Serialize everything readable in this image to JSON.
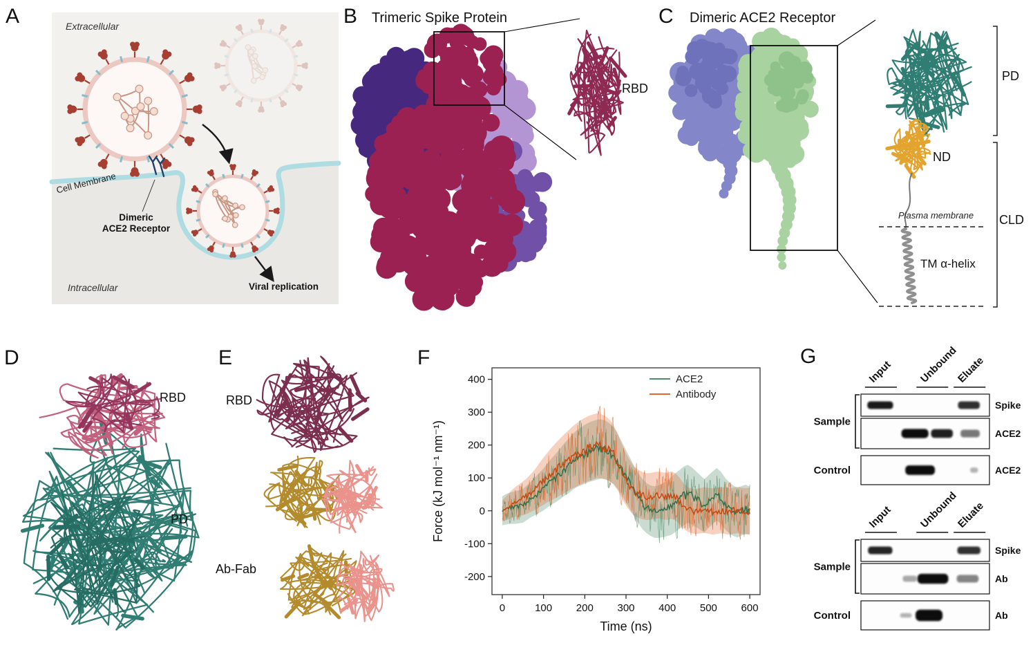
{
  "figure": {
    "panels": {
      "a": {
        "label": "A",
        "extracellular": "Extracellular",
        "intracellular": "Intracellular",
        "cell_membrane": "Cell Membrane",
        "receptor_label": "Dimeric\nACE2 Receptor",
        "viral_replication": "Viral replication"
      },
      "b": {
        "label": "B",
        "title": "Trimeric Spike Protein",
        "rbd_label": "RBD"
      },
      "c": {
        "label": "C",
        "title": "Dimeric ACE2 Receptor",
        "pd_label": "PD",
        "nd_label": "ND",
        "cld_label": "CLD",
        "plasma_membrane_label": "Plasma membrane",
        "tm_helix_label": "TM α-helix"
      },
      "d": {
        "label": "D",
        "rbd_label": "RBD",
        "pd_label": "PD"
      },
      "e": {
        "label": "E",
        "rbd_label": "RBD",
        "abfab_label": "Ab-Fab"
      },
      "f": {
        "label": "F"
      },
      "g": {
        "label": "G",
        "groups": [
          {
            "name": "ace2-pulldown",
            "lanes": [
              "Input",
              "Unbound",
              "Eluate"
            ],
            "sample_label": "Sample",
            "control_label": "Control",
            "rows": [
              {
                "group": "Sample",
                "target": "Spike",
                "bands": [
                  {
                    "pos": 0.15,
                    "w": 0.2,
                    "i": 0.95,
                    "h": 1
                  },
                  {
                    "pos": 0.84,
                    "w": 0.17,
                    "i": 0.85,
                    "h": 1
                  }
                ]
              },
              {
                "group": "Sample",
                "target": "ACE2",
                "bands": [
                  {
                    "pos": 0.42,
                    "w": 0.21,
                    "i": 1,
                    "h": 1.2
                  },
                  {
                    "pos": 0.63,
                    "w": 0.17,
                    "i": 0.92,
                    "h": 1.15
                  },
                  {
                    "pos": 0.85,
                    "w": 0.15,
                    "i": 0.55,
                    "h": 1
                  }
                ]
              },
              {
                "group": "Control",
                "target": "ACE2",
                "bands": [
                  {
                    "pos": 0.46,
                    "w": 0.23,
                    "i": 1,
                    "h": 1.25
                  },
                  {
                    "pos": 0.88,
                    "w": 0.06,
                    "i": 0.3,
                    "h": 0.7
                  }
                ]
              }
            ]
          },
          {
            "name": "antibody-pulldown",
            "lanes": [
              "Input",
              "Unbound",
              "Eluate"
            ],
            "sample_label": "Sample",
            "control_label": "Control",
            "rows": [
              {
                "group": "Sample",
                "target": "Spike",
                "bands": [
                  {
                    "pos": 0.15,
                    "w": 0.19,
                    "i": 0.9,
                    "h": 1
                  },
                  {
                    "pos": 0.84,
                    "w": 0.18,
                    "i": 0.85,
                    "h": 1
                  }
                ]
              },
              {
                "group": "Sample",
                "target": "Ab",
                "bands": [
                  {
                    "pos": 0.38,
                    "w": 0.11,
                    "i": 0.35,
                    "h": 0.8
                  },
                  {
                    "pos": 0.56,
                    "w": 0.24,
                    "i": 1,
                    "h": 1.3
                  },
                  {
                    "pos": 0.83,
                    "w": 0.17,
                    "i": 0.5,
                    "h": 1
                  }
                ]
              },
              {
                "group": "Control",
                "target": "Ab",
                "bands": [
                  {
                    "pos": 0.35,
                    "w": 0.09,
                    "i": 0.3,
                    "h": 0.6
                  },
                  {
                    "pos": 0.53,
                    "w": 0.21,
                    "i": 1,
                    "h": 1.5
                  }
                ]
              }
            ]
          }
        ]
      }
    },
    "colors": {
      "spike_crimson": "#9b2153",
      "spike_dark_purple": "#47287f",
      "spike_lavender": "#b495d3",
      "ace2_purple": "#8386c8",
      "ace2_green": "#a8d3a0",
      "ribbon_teal": "#2f7d73",
      "ribbon_orange": "#e2a42f",
      "ribbon_maroon": "#7c2e4e",
      "ribbon_pink": "#c2607e",
      "fab_gold": "#b38b2d",
      "fab_salmon": "#ea928c",
      "trace_green": "#4f8c68",
      "trace_orange": "#e2672f"
    }
  },
  "chart_data": {
    "type": "line",
    "title": "",
    "xlabel": "Time (ns)",
    "ylabel": "Force (kJ mol⁻¹  nm⁻¹)",
    "xlim": [
      -25,
      625
    ],
    "ylim": [
      -255,
      435
    ],
    "x_ticks": [
      0,
      100,
      200,
      300,
      400,
      500,
      600
    ],
    "y_ticks": [
      -200,
      -100,
      0,
      100,
      200,
      300,
      400
    ],
    "legend": [
      "ACE2",
      "Antibody"
    ],
    "legend_position": "top-right",
    "grid": false,
    "x_step": 10,
    "series": [
      {
        "name": "ACE2",
        "color": "#4f8c68",
        "mean": [
          0,
          5,
          8,
          10,
          12,
          15,
          25,
          35,
          45,
          55,
          65,
          78,
          90,
          100,
          112,
          125,
          135,
          148,
          158,
          165,
          172,
          178,
          182,
          186,
          188,
          185,
          178,
          168,
          150,
          128,
          105,
          82,
          58,
          38,
          20,
          8,
          0,
          -4,
          -2,
          2,
          8,
          15,
          25,
          35,
          45,
          52,
          45,
          35,
          25,
          15,
          28,
          40,
          50,
          40,
          22,
          10,
          0,
          -5,
          0,
          5,
          0
        ],
        "amp": [
          55,
          58,
          60,
          62,
          63,
          64,
          66,
          68,
          72,
          76,
          80,
          84,
          88,
          92,
          96,
          100,
          104,
          106,
          108,
          110,
          112,
          113,
          114,
          114,
          113,
          112,
          110,
          108,
          105,
          102,
          100,
          98,
          96,
          95,
          95,
          95,
          96,
          98,
          100,
          103,
          106,
          110,
          112,
          112,
          112,
          110,
          108,
          106,
          104,
          102,
          100,
          100,
          100,
          99,
          98,
          97,
          96,
          95,
          94,
          93,
          92
        ]
      },
      {
        "name": "Antibody",
        "color": "#e2672f",
        "mean": [
          0,
          8,
          18,
          26,
          32,
          38,
          45,
          55,
          65,
          78,
          90,
          102,
          113,
          123,
          133,
          143,
          152,
          162,
          170,
          178,
          184,
          190,
          194,
          198,
          196,
          192,
          184,
          170,
          148,
          120,
          95,
          75,
          60,
          52,
          46,
          43,
          44,
          47,
          48,
          45,
          44,
          48,
          42,
          30,
          14,
          4,
          0,
          -2,
          0,
          2,
          0,
          -2,
          0,
          2,
          0,
          -2,
          0,
          2,
          0,
          -2,
          0
        ],
        "amp": [
          40,
          46,
          52,
          56,
          60,
          64,
          68,
          72,
          78,
          84,
          90,
          95,
          100,
          105,
          108,
          112,
          115,
          118,
          120,
          122,
          123,
          124,
          124,
          123,
          122,
          120,
          117,
          113,
          108,
          103,
          99,
          96,
          93,
          91,
          90,
          89,
          89,
          89,
          89,
          89,
          90,
          90,
          90,
          88,
          86,
          85,
          85,
          86,
          86,
          87,
          87,
          88,
          88,
          88,
          88,
          88,
          88,
          88,
          88,
          88,
          88
        ]
      }
    ]
  }
}
